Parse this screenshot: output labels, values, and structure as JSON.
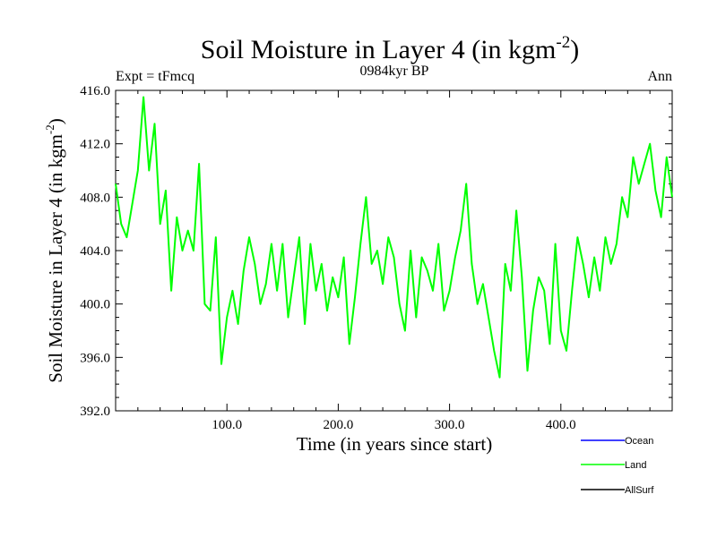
{
  "chart_data": {
    "type": "line",
    "title": "Soil Moisture in Layer 4 (in kgm",
    "title_sup": "-2",
    "title_close": ")",
    "subtitle_left": "Expt = tFmcq",
    "subtitle_center": "0984kyr BP",
    "subtitle_right": "Ann",
    "xlabel": "Time (in years since start)",
    "ylabel": "Soil Moisture in Layer 4 (in kgm",
    "ylabel_sup": "-2",
    "ylabel_close": ")",
    "xlim": [
      0,
      500
    ],
    "ylim": [
      392,
      416
    ],
    "x_ticks": [
      100,
      200,
      300,
      400
    ],
    "x_tick_labels": [
      "100.0",
      "200.0",
      "300.0",
      "400.0"
    ],
    "y_ticks": [
      392,
      396,
      400,
      404,
      408,
      412,
      416
    ],
    "y_tick_labels": [
      "392.0",
      "396.0",
      "400.0",
      "404.0",
      "408.0",
      "412.0",
      "416.0"
    ],
    "legend": [
      {
        "name": "Ocean",
        "color": "#0000ff"
      },
      {
        "name": "Land",
        "color": "#00ff00"
      },
      {
        "name": "AllSurf",
        "color": "#000000"
      }
    ],
    "series": [
      {
        "name": "Land",
        "color": "#00ff00",
        "x": [
          0,
          5,
          10,
          15,
          20,
          25,
          30,
          35,
          40,
          45,
          50,
          55,
          60,
          65,
          70,
          75,
          80,
          85,
          90,
          95,
          100,
          105,
          110,
          115,
          120,
          125,
          130,
          135,
          140,
          145,
          150,
          155,
          160,
          165,
          170,
          175,
          180,
          185,
          190,
          195,
          200,
          205,
          210,
          215,
          220,
          225,
          230,
          235,
          240,
          245,
          250,
          255,
          260,
          265,
          270,
          275,
          280,
          285,
          290,
          295,
          300,
          305,
          310,
          315,
          320,
          325,
          330,
          335,
          340,
          345,
          350,
          355,
          360,
          365,
          370,
          375,
          380,
          385,
          390,
          395,
          400,
          405,
          410,
          415,
          420,
          425,
          430,
          435,
          440,
          445,
          450,
          455,
          460,
          465,
          470,
          475,
          480,
          485,
          490,
          495,
          500
        ],
        "values": [
          409.0,
          406.0,
          405.0,
          407.5,
          410.0,
          415.5,
          410.0,
          413.5,
          406.0,
          408.5,
          401.0,
          406.5,
          404.0,
          405.5,
          404.0,
          410.5,
          400.0,
          399.5,
          405.0,
          395.5,
          399.0,
          401.0,
          398.5,
          402.5,
          405.0,
          403.0,
          400.0,
          401.5,
          404.5,
          401.0,
          404.5,
          399.0,
          402.0,
          405.0,
          398.5,
          404.5,
          401.0,
          403.0,
          399.5,
          402.0,
          400.5,
          403.5,
          397.0,
          400.5,
          404.5,
          408.0,
          403.0,
          404.0,
          401.5,
          405.0,
          403.5,
          400.0,
          398.0,
          404.0,
          399.0,
          403.5,
          402.5,
          401.0,
          404.5,
          399.5,
          401.0,
          403.5,
          405.5,
          409.0,
          403.0,
          400.0,
          401.5,
          399.0,
          396.5,
          394.5,
          403.0,
          401.0,
          407.0,
          402.0,
          395.0,
          399.5,
          402.0,
          401.0,
          397.0,
          404.5,
          398.0,
          396.5,
          401.0,
          405.0,
          403.0,
          400.5,
          403.5,
          401.0,
          405.0,
          403.0,
          404.5,
          408.0,
          406.5,
          411.0,
          409.0,
          410.5,
          412.0,
          408.5,
          406.5,
          411.0,
          408.0
        ]
      }
    ]
  }
}
